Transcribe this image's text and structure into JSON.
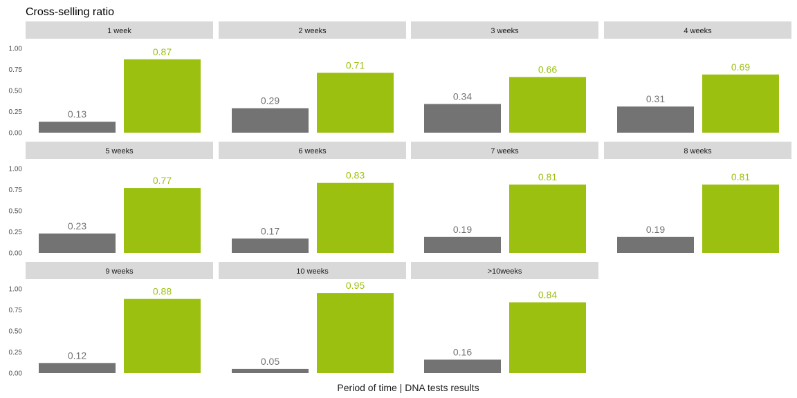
{
  "chart_data": {
    "type": "bar",
    "title": "Cross-selling ratio",
    "xlabel": "Period of time | DNA tests results",
    "ylabel": "",
    "ylim": [
      0,
      1
    ],
    "yticks": [
      "1.00",
      "0.75",
      "0.50",
      "0.25",
      "0.00"
    ],
    "grid": false,
    "legend": "none",
    "colors": {
      "first": "#737373",
      "second": "#9bc010",
      "strip": "#d9d9d9"
    },
    "panels": [
      {
        "label": "1 week",
        "values": [
          0.13,
          0.87
        ],
        "labels": [
          "0.13",
          "0.87"
        ]
      },
      {
        "label": "2 weeks",
        "values": [
          0.29,
          0.71
        ],
        "labels": [
          "0.29",
          "0.71"
        ]
      },
      {
        "label": "3 weeks",
        "values": [
          0.34,
          0.66
        ],
        "labels": [
          "0.34",
          "0.66"
        ]
      },
      {
        "label": "4 weeks",
        "values": [
          0.31,
          0.69
        ],
        "labels": [
          "0.31",
          "0.69"
        ]
      },
      {
        "label": "5 weeks",
        "values": [
          0.23,
          0.77
        ],
        "labels": [
          "0.23",
          "0.77"
        ]
      },
      {
        "label": "6 weeks",
        "values": [
          0.17,
          0.83
        ],
        "labels": [
          "0.17",
          "0.83"
        ]
      },
      {
        "label": "7 weeks",
        "values": [
          0.19,
          0.81
        ],
        "labels": [
          "0.19",
          "0.81"
        ]
      },
      {
        "label": "8 weeks",
        "values": [
          0.19,
          0.81
        ],
        "labels": [
          "0.19",
          "0.81"
        ]
      },
      {
        "label": "9 weeks",
        "values": [
          0.12,
          0.88
        ],
        "labels": [
          "0.12",
          "0.88"
        ]
      },
      {
        "label": "10 weeks",
        "values": [
          0.05,
          0.95
        ],
        "labels": [
          "0.05",
          "0.95"
        ]
      },
      {
        "label": ">10weeks",
        "values": [
          0.16,
          0.84
        ],
        "labels": [
          "0.16",
          "0.84"
        ]
      }
    ]
  }
}
